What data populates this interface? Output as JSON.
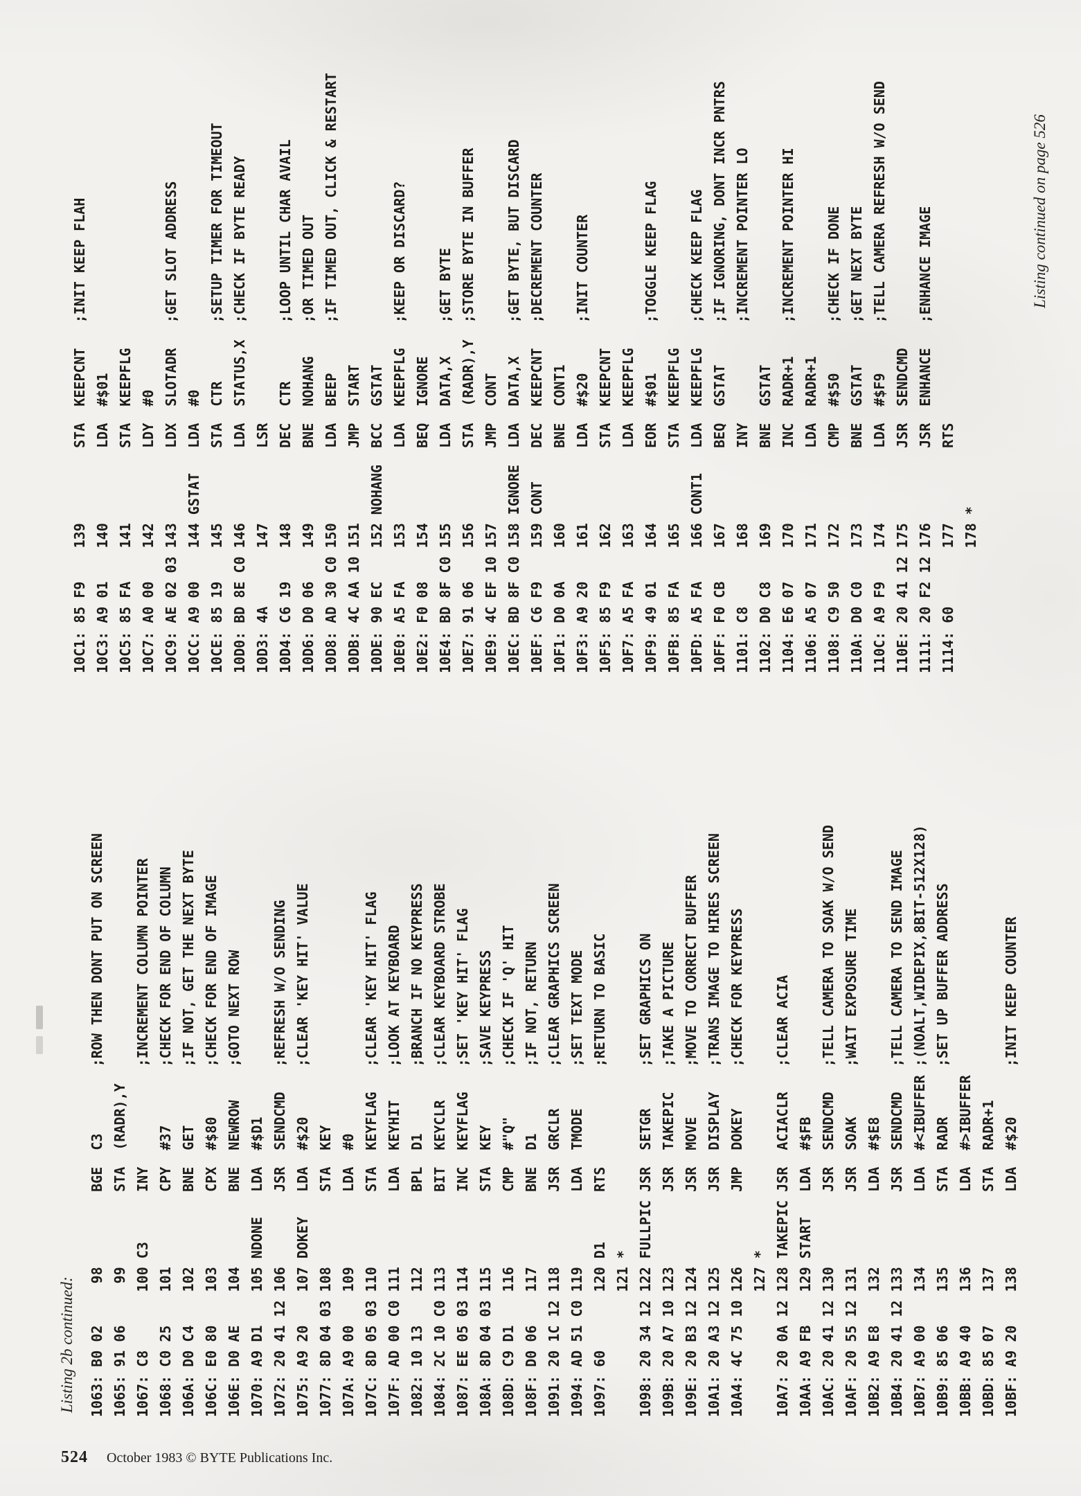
{
  "page": {
    "background_color": "#f2f1ee",
    "text_color": "#1d1c1b",
    "caption_left": "Listing 2b continued:",
    "caption_right": "Listing continued on page 526",
    "footer_page_number": "524",
    "footer_text": "October 1983 © BYTE Publications Inc."
  },
  "listing": {
    "column1": {
      "lines": [
        {
          "addr": "1063:",
          "bytes": "B0 02",
          "num": "98",
          "label": "",
          "mn": "BGE",
          "op": "C3",
          "comment": ";ROW THEN DONT PUT ON SCREEN"
        },
        {
          "addr": "1065:",
          "bytes": "91 06",
          "num": "99",
          "label": "",
          "mn": "STA",
          "op": "(RADR),Y",
          "comment": ""
        },
        {
          "addr": "1067:",
          "bytes": "C8",
          "num": "100",
          "label": "C3",
          "mn": "INY",
          "op": "",
          "comment": ";INCREMENT COLUMN POINTER"
        },
        {
          "addr": "1068:",
          "bytes": "C0 25",
          "num": "101",
          "label": "",
          "mn": "CPY",
          "op": "#37",
          "comment": ";CHECK FOR END OF COLUMN"
        },
        {
          "addr": "106A:",
          "bytes": "D0 C4",
          "num": "102",
          "label": "",
          "mn": "BNE",
          "op": "GET",
          "comment": ";IF NOT, GET THE NEXT BYTE"
        },
        {
          "addr": "106C:",
          "bytes": "E0 80",
          "num": "103",
          "label": "",
          "mn": "CPX",
          "op": "#$80",
          "comment": ";CHECK FOR END OF IMAGE"
        },
        {
          "addr": "106E:",
          "bytes": "D0 AE",
          "num": "104",
          "label": "",
          "mn": "BNE",
          "op": "NEWROW",
          "comment": ";GOTO NEXT ROW"
        },
        {
          "addr": "1070:",
          "bytes": "A9 D1",
          "num": "105",
          "label": "NDONE",
          "mn": "LDA",
          "op": "#$D1",
          "comment": ""
        },
        {
          "addr": "1072:",
          "bytes": "20 41 12",
          "num": "106",
          "label": "",
          "mn": "JSR",
          "op": "SENDCMD",
          "comment": ";REFRESH W/O SENDING"
        },
        {
          "addr": "1075:",
          "bytes": "A9 20",
          "num": "107",
          "label": "DOKEY",
          "mn": "LDA",
          "op": "#$20",
          "comment": ";CLEAR 'KEY HIT' VALUE"
        },
        {
          "addr": "1077:",
          "bytes": "8D 04 03",
          "num": "108",
          "label": "",
          "mn": "STA",
          "op": "KEY",
          "comment": ""
        },
        {
          "addr": "107A:",
          "bytes": "A9 00",
          "num": "109",
          "label": "",
          "mn": "LDA",
          "op": "#0",
          "comment": ""
        },
        {
          "addr": "107C:",
          "bytes": "8D 05 03",
          "num": "110",
          "label": "",
          "mn": "STA",
          "op": "KEYFLAG",
          "comment": ";CLEAR 'KEY HIT' FLAG"
        },
        {
          "addr": "107F:",
          "bytes": "AD 00 C0",
          "num": "111",
          "label": "",
          "mn": "LDA",
          "op": "KEYHIT",
          "comment": ";LOOK AT KEYBOARD"
        },
        {
          "addr": "1082:",
          "bytes": "10 13",
          "num": "112",
          "label": "",
          "mn": "BPL",
          "op": "D1",
          "comment": ";BRANCH IF NO KEYPRESS"
        },
        {
          "addr": "1084:",
          "bytes": "2C 10 C0",
          "num": "113",
          "label": "",
          "mn": "BIT",
          "op": "KEYCLR",
          "comment": ";CLEAR KEYBOARD STROBE"
        },
        {
          "addr": "1087:",
          "bytes": "EE 05 03",
          "num": "114",
          "label": "",
          "mn": "INC",
          "op": "KEYFLAG",
          "comment": ";SET 'KEY HIT' FLAG"
        },
        {
          "addr": "108A:",
          "bytes": "8D 04 03",
          "num": "115",
          "label": "",
          "mn": "STA",
          "op": "KEY",
          "comment": ";SAVE KEYPRESS"
        },
        {
          "addr": "108D:",
          "bytes": "C9 D1",
          "num": "116",
          "label": "",
          "mn": "CMP",
          "op": "#\"Q\"",
          "comment": ";CHECK IF 'Q' HIT"
        },
        {
          "addr": "108F:",
          "bytes": "D0 06",
          "num": "117",
          "label": "",
          "mn": "BNE",
          "op": "D1",
          "comment": ";IF NOT, RETURN"
        },
        {
          "addr": "1091:",
          "bytes": "20 1C 12",
          "num": "118",
          "label": "",
          "mn": "JSR",
          "op": "GRCLR",
          "comment": ";CLEAR GRAPHICS SCREEN"
        },
        {
          "addr": "1094:",
          "bytes": "AD 51 C0",
          "num": "119",
          "label": "",
          "mn": "LDA",
          "op": "TMODE",
          "comment": ";SET TEXT MODE"
        },
        {
          "addr": "1097:",
          "bytes": "60",
          "num": "120",
          "label": "D1",
          "mn": "RTS",
          "op": "",
          "comment": ";RETURN TO BASIC"
        },
        {
          "addr": "",
          "bytes": "",
          "num": "121",
          "label": "*",
          "mn": "",
          "op": "",
          "comment": ""
        },
        {
          "addr": "1098:",
          "bytes": "20 34 12",
          "num": "122",
          "label": "FULLPIC",
          "mn": "JSR",
          "op": "SETGR",
          "comment": ";SET GRAPHICS ON"
        },
        {
          "addr": "109B:",
          "bytes": "20 A7 10",
          "num": "123",
          "label": "",
          "mn": "JSR",
          "op": "TAKEPIC",
          "comment": ";TAKE A PICTURE"
        },
        {
          "addr": "109E:",
          "bytes": "20 B3 12",
          "num": "124",
          "label": "",
          "mn": "JSR",
          "op": "MOVE",
          "comment": ";MOVE TO CORRECT BUFFER"
        },
        {
          "addr": "10A1:",
          "bytes": "20 A3 12",
          "num": "125",
          "label": "",
          "mn": "JSR",
          "op": "DISPLAY",
          "comment": ";TRANS IMAGE TO HIRES SCREEN"
        },
        {
          "addr": "10A4:",
          "bytes": "4C 75 10",
          "num": "126",
          "label": "",
          "mn": "JMP",
          "op": "DOKEY",
          "comment": ";CHECK FOR KEYPRESS"
        },
        {
          "addr": "",
          "bytes": "",
          "num": "127",
          "label": "*",
          "mn": "",
          "op": "",
          "comment": ""
        },
        {
          "addr": "10A7:",
          "bytes": "20 0A 12",
          "num": "128",
          "label": "TAKEPIC",
          "mn": "JSR",
          "op": "ACIACLR",
          "comment": ";CLEAR ACIA"
        },
        {
          "addr": "10AA:",
          "bytes": "A9 FB",
          "num": "129",
          "label": "START",
          "mn": "LDA",
          "op": "#$FB",
          "comment": ""
        },
        {
          "addr": "10AC:",
          "bytes": "20 41 12",
          "num": "130",
          "label": "",
          "mn": "JSR",
          "op": "SENDCMD",
          "comment": ";TELL CAMERA TO SOAK W/O SEND"
        },
        {
          "addr": "10AF:",
          "bytes": "20 55 12",
          "num": "131",
          "label": "",
          "mn": "JSR",
          "op": "SOAK",
          "comment": ";WAIT EXPOSURE TIME"
        },
        {
          "addr": "10B2:",
          "bytes": "A9 E8",
          "num": "132",
          "label": "",
          "mn": "LDA",
          "op": "#$E8",
          "comment": ""
        },
        {
          "addr": "10B4:",
          "bytes": "20 41 12",
          "num": "133",
          "label": "",
          "mn": "JSR",
          "op": "SENDCMD",
          "comment": ";TELL CAMERA TO SEND IMAGE"
        },
        {
          "addr": "10B7:",
          "bytes": "A9 00",
          "num": "134",
          "label": "",
          "mn": "LDA",
          "op": "#<IBUFFER",
          "comment": ";(NOALT,WIDEPIX,8BIT-512X128)"
        },
        {
          "addr": "10B9:",
          "bytes": "85 06",
          "num": "135",
          "label": "",
          "mn": "STA",
          "op": "RADR",
          "comment": ";SET UP BUFFER ADDRESS"
        },
        {
          "addr": "10BB:",
          "bytes": "A9 40",
          "num": "136",
          "label": "",
          "mn": "LDA",
          "op": "#>IBUFFER",
          "comment": ""
        },
        {
          "addr": "10BD:",
          "bytes": "85 07",
          "num": "137",
          "label": "",
          "mn": "STA",
          "op": "RADR+1",
          "comment": ""
        },
        {
          "addr": "10BF:",
          "bytes": "A9 20",
          "num": "138",
          "label": "",
          "mn": "LDA",
          "op": "#$20",
          "comment": ";INIT KEEP COUNTER"
        }
      ]
    },
    "column2": {
      "lines": [
        {
          "addr": "10C1:",
          "bytes": "85 F9",
          "num": "139",
          "label": "",
          "mn": "STA",
          "op": "KEEPCNT",
          "comment": ";INIT KEEP FLAH"
        },
        {
          "addr": "10C3:",
          "bytes": "A9 01",
          "num": "140",
          "label": "",
          "mn": "LDA",
          "op": "#$01",
          "comment": ""
        },
        {
          "addr": "10C5:",
          "bytes": "85 FA",
          "num": "141",
          "label": "",
          "mn": "STA",
          "op": "KEEPFLG",
          "comment": ""
        },
        {
          "addr": "10C7:",
          "bytes": "A0 00",
          "num": "142",
          "label": "",
          "mn": "LDY",
          "op": "#0",
          "comment": ""
        },
        {
          "addr": "10C9:",
          "bytes": "AE 02 03",
          "num": "143",
          "label": "",
          "mn": "LDX",
          "op": "SLOTADR",
          "comment": ";GET SLOT ADDRESS"
        },
        {
          "addr": "10CC:",
          "bytes": "A9 00",
          "num": "144",
          "label": "GSTAT",
          "mn": "LDA",
          "op": "#0",
          "comment": ""
        },
        {
          "addr": "10CE:",
          "bytes": "85 19",
          "num": "145",
          "label": "",
          "mn": "STA",
          "op": "CTR",
          "comment": ";SETUP TIMER FOR TIMEOUT"
        },
        {
          "addr": "10D0:",
          "bytes": "BD 8E C0",
          "num": "146",
          "label": "",
          "mn": "LDA",
          "op": "STATUS,X",
          "comment": ";CHECK IF BYTE READY"
        },
        {
          "addr": "10D3:",
          "bytes": "4A",
          "num": "147",
          "label": "",
          "mn": "LSR",
          "op": "",
          "comment": ""
        },
        {
          "addr": "10D4:",
          "bytes": "C6 19",
          "num": "148",
          "label": "",
          "mn": "DEC",
          "op": "CTR",
          "comment": ";LOOP UNTIL CHAR AVAIL"
        },
        {
          "addr": "10D6:",
          "bytes": "D0 06",
          "num": "149",
          "label": "",
          "mn": "BNE",
          "op": "NOHANG",
          "comment": ";OR TIMED OUT"
        },
        {
          "addr": "10D8:",
          "bytes": "AD 30 C0",
          "num": "150",
          "label": "",
          "mn": "LDA",
          "op": "BEEP",
          "comment": ";IF TIMED OUT, CLICK & RESTART"
        },
        {
          "addr": "10DB:",
          "bytes": "4C AA 10",
          "num": "151",
          "label": "",
          "mn": "JMP",
          "op": "START",
          "comment": ""
        },
        {
          "addr": "10DE:",
          "bytes": "90 EC",
          "num": "152",
          "label": "NOHANG",
          "mn": "BCC",
          "op": "GSTAT",
          "comment": ""
        },
        {
          "addr": "10E0:",
          "bytes": "A5 FA",
          "num": "153",
          "label": "",
          "mn": "LDA",
          "op": "KEEPFLG",
          "comment": ";KEEP OR DISCARD?"
        },
        {
          "addr": "10E2:",
          "bytes": "F0 08",
          "num": "154",
          "label": "",
          "mn": "BEQ",
          "op": "IGNORE",
          "comment": ""
        },
        {
          "addr": "10E4:",
          "bytes": "BD 8F C0",
          "num": "155",
          "label": "",
          "mn": "LDA",
          "op": "DATA,X",
          "comment": ";GET BYTE"
        },
        {
          "addr": "10E7:",
          "bytes": "91 06",
          "num": "156",
          "label": "",
          "mn": "STA",
          "op": "(RADR),Y",
          "comment": ";STORE BYTE IN BUFFER"
        },
        {
          "addr": "10E9:",
          "bytes": "4C EF 10",
          "num": "157",
          "label": "",
          "mn": "JMP",
          "op": "CONT",
          "comment": ""
        },
        {
          "addr": "10EC:",
          "bytes": "BD 8F C0",
          "num": "158",
          "label": "IGNORE",
          "mn": "LDA",
          "op": "DATA,X",
          "comment": ";GET BYTE, BUT DISCARD"
        },
        {
          "addr": "10EF:",
          "bytes": "C6 F9",
          "num": "159",
          "label": "CONT",
          "mn": "DEC",
          "op": "KEEPCNT",
          "comment": ";DECREMENT COUNTER"
        },
        {
          "addr": "10F1:",
          "bytes": "D0 0A",
          "num": "160",
          "label": "",
          "mn": "BNE",
          "op": "CONT1",
          "comment": ""
        },
        {
          "addr": "10F3:",
          "bytes": "A9 20",
          "num": "161",
          "label": "",
          "mn": "LDA",
          "op": "#$20",
          "comment": ";INIT COUNTER"
        },
        {
          "addr": "10F5:",
          "bytes": "85 F9",
          "num": "162",
          "label": "",
          "mn": "STA",
          "op": "KEEPCNT",
          "comment": ""
        },
        {
          "addr": "10F7:",
          "bytes": "A5 FA",
          "num": "163",
          "label": "",
          "mn": "LDA",
          "op": "KEEPFLG",
          "comment": ""
        },
        {
          "addr": "10F9:",
          "bytes": "49 01",
          "num": "164",
          "label": "",
          "mn": "EOR",
          "op": "#$01",
          "comment": ";TOGGLE KEEP FLAG"
        },
        {
          "addr": "10FB:",
          "bytes": "85 FA",
          "num": "165",
          "label": "",
          "mn": "STA",
          "op": "KEEPFLG",
          "comment": ""
        },
        {
          "addr": "10FD:",
          "bytes": "A5 FA",
          "num": "166",
          "label": "CONT1",
          "mn": "LDA",
          "op": "KEEPFLG",
          "comment": ";CHECK KEEP FLAG"
        },
        {
          "addr": "10FF:",
          "bytes": "F0 CB",
          "num": "167",
          "label": "",
          "mn": "BEQ",
          "op": "GSTAT",
          "comment": ";IF IGNORING, DONT INCR PNTRS"
        },
        {
          "addr": "1101:",
          "bytes": "C8",
          "num": "168",
          "label": "",
          "mn": "INY",
          "op": "",
          "comment": ";INCREMENT POINTER LO"
        },
        {
          "addr": "1102:",
          "bytes": "D0 C8",
          "num": "169",
          "label": "",
          "mn": "BNE",
          "op": "GSTAT",
          "comment": ""
        },
        {
          "addr": "1104:",
          "bytes": "E6 07",
          "num": "170",
          "label": "",
          "mn": "INC",
          "op": "RADR+1",
          "comment": ";INCREMENT POINTER HI"
        },
        {
          "addr": "1106:",
          "bytes": "A5 07",
          "num": "171",
          "label": "",
          "mn": "LDA",
          "op": "RADR+1",
          "comment": ""
        },
        {
          "addr": "1108:",
          "bytes": "C9 50",
          "num": "172",
          "label": "",
          "mn": "CMP",
          "op": "#$50",
          "comment": ";CHECK IF DONE"
        },
        {
          "addr": "110A:",
          "bytes": "D0 C0",
          "num": "173",
          "label": "",
          "mn": "BNE",
          "op": "GSTAT",
          "comment": ";GET NEXT BYTE"
        },
        {
          "addr": "110C:",
          "bytes": "A9 F9",
          "num": "174",
          "label": "",
          "mn": "LDA",
          "op": "#$F9",
          "comment": ";TELL CAMERA REFRESH W/O SEND"
        },
        {
          "addr": "110E:",
          "bytes": "20 41 12",
          "num": "175",
          "label": "",
          "mn": "JSR",
          "op": "SENDCMD",
          "comment": ""
        },
        {
          "addr": "1111:",
          "bytes": "20 F2 12",
          "num": "176",
          "label": "",
          "mn": "JSR",
          "op": "ENHANCE",
          "comment": ";ENHANCE IMAGE"
        },
        {
          "addr": "1114:",
          "bytes": "60",
          "num": "177",
          "label": "",
          "mn": "RTS",
          "op": "",
          "comment": ""
        },
        {
          "addr": "",
          "bytes": "",
          "num": "178",
          "label": "*",
          "mn": "",
          "op": "",
          "comment": ""
        }
      ]
    }
  }
}
